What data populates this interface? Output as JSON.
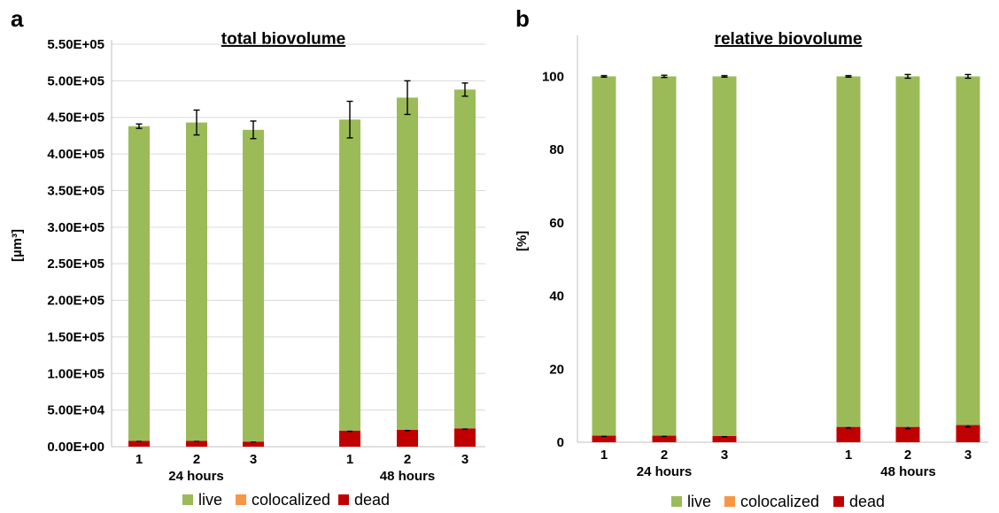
{
  "colors": {
    "live": "#9bbb59",
    "colocalized": "#f79646",
    "dead": "#c00000"
  },
  "chart_data": [
    {
      "panel": "a",
      "type": "bar",
      "stacked": true,
      "title": "total biovolume",
      "xlabel": "",
      "ylabel": "[µm³]",
      "ylim": [
        0,
        550000
      ],
      "yticks": [
        0,
        50000,
        100000,
        150000,
        200000,
        250000,
        300000,
        350000,
        400000,
        450000,
        500000,
        550000
      ],
      "ytick_labels": [
        "0.00E+00",
        "5.00E+04",
        "1.00E+05",
        "1.50E+05",
        "2.00E+05",
        "2.50E+05",
        "3.00E+05",
        "3.50E+05",
        "4.00E+05",
        "4.50E+05",
        "5.00E+05",
        "5.50E+05"
      ],
      "grid": true,
      "legend": "bottom",
      "categories": [
        "1",
        "2",
        "3",
        "1",
        "2",
        "3"
      ],
      "groups": [
        {
          "label": "24 hours",
          "indices": [
            0,
            1,
            2
          ]
        },
        {
          "label": "48 hours",
          "indices": [
            3,
            4,
            5
          ]
        }
      ],
      "series": [
        {
          "name": "dead",
          "values": [
            8000,
            8000,
            7000,
            22000,
            23000,
            25000
          ],
          "errors": [
            500,
            500,
            500,
            1000,
            1000,
            1000
          ]
        },
        {
          "name": "colocalized",
          "values": [
            0,
            0,
            0,
            0,
            0,
            0
          ]
        },
        {
          "name": "live",
          "values": [
            430000,
            435000,
            426000,
            425000,
            454000,
            463000
          ]
        }
      ],
      "total_errors": [
        3000,
        17000,
        12000,
        25000,
        23000,
        9000
      ]
    },
    {
      "panel": "b",
      "type": "bar",
      "stacked": true,
      "title": "relative biovolume",
      "xlabel": "",
      "ylabel": "[%]",
      "ylim": [
        0,
        110
      ],
      "yticks": [
        0,
        20,
        40,
        60,
        80,
        100
      ],
      "ytick_labels": [
        "0",
        "20",
        "40",
        "60",
        "80",
        "100"
      ],
      "grid": false,
      "legend": "bottom",
      "categories": [
        "1",
        "2",
        "3",
        "1",
        "2",
        "3"
      ],
      "groups": [
        {
          "label": "24 hours",
          "indices": [
            0,
            1,
            2
          ]
        },
        {
          "label": "48 hours",
          "indices": [
            3,
            4,
            5
          ]
        }
      ],
      "series": [
        {
          "name": "dead",
          "values": [
            1.8,
            1.8,
            1.7,
            4.2,
            4.2,
            4.7
          ],
          "errors": [
            0.2,
            0.2,
            0.2,
            0.3,
            0.5,
            0.5
          ]
        },
        {
          "name": "colocalized",
          "values": [
            0,
            0,
            0,
            0,
            0,
            0
          ]
        },
        {
          "name": "live",
          "values": [
            98.2,
            98.2,
            98.3,
            95.8,
            95.8,
            95.3
          ]
        }
      ],
      "total_errors": [
        0.2,
        0.3,
        0.2,
        0.2,
        0.5,
        0.5
      ]
    }
  ]
}
